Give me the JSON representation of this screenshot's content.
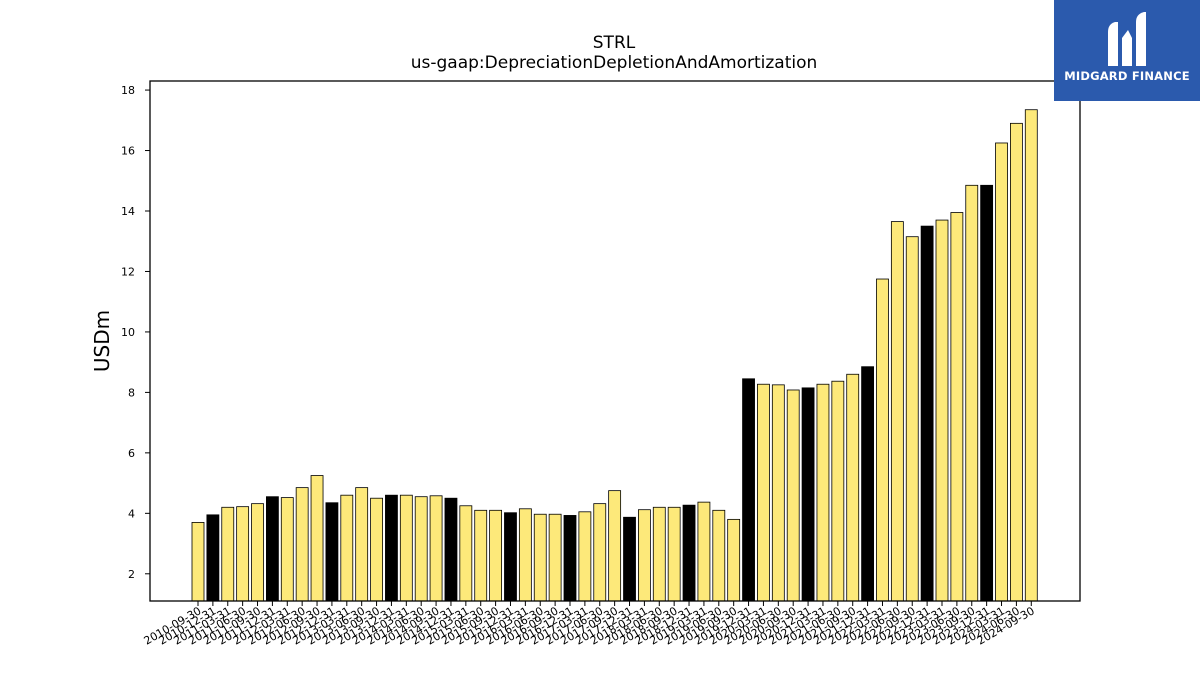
{
  "logo": {
    "text": "MIDGARD FINANCE"
  },
  "chart_data": {
    "type": "bar",
    "title": "STRL",
    "subtitle": "us-gaap:DepreciationDepletionAndAmortization",
    "xlabel": "",
    "ylabel": "USDm",
    "ylim": [
      1.1,
      18.3
    ],
    "yticks": [
      2,
      4,
      6,
      8,
      10,
      12,
      14,
      16,
      18
    ],
    "grid": false,
    "colors": {
      "quarter": "#fde97a",
      "fiscal_year_end": "#000000",
      "edge": "#000000"
    },
    "categories": [
      "2010-09-30",
      "2010-12-31",
      "2011-03-31",
      "2011-06-30",
      "2011-09-30",
      "2011-12-31",
      "2012-03-31",
      "2012-06-30",
      "2012-09-30",
      "2012-12-31",
      "2013-03-31",
      "2013-06-30",
      "2013-09-30",
      "2013-12-31",
      "2014-03-31",
      "2014-06-30",
      "2014-09-30",
      "2014-12-31",
      "2015-03-31",
      "2015-06-30",
      "2015-09-30",
      "2015-12-31",
      "2016-03-31",
      "2016-06-30",
      "2016-09-30",
      "2016-12-31",
      "2017-03-31",
      "2017-06-30",
      "2017-09-30",
      "2017-12-31",
      "2018-03-31",
      "2018-06-30",
      "2018-09-30",
      "2018-12-31",
      "2019-03-31",
      "2019-06-30",
      "2019-09-30",
      "2019-12-31",
      "2020-03-31",
      "2020-06-30",
      "2020-09-30",
      "2020-12-31",
      "2021-03-31",
      "2021-06-30",
      "2021-09-30",
      "2021-12-31",
      "2022-03-31",
      "2022-06-30",
      "2022-09-30",
      "2022-12-31",
      "2023-03-31",
      "2023-06-30",
      "2023-09-30",
      "2023-12-31",
      "2024-03-31",
      "2024-06-30",
      "2024-09-30"
    ],
    "values": [
      3.7,
      3.95,
      4.2,
      4.22,
      4.32,
      4.55,
      4.52,
      4.85,
      5.25,
      4.35,
      4.6,
      4.85,
      4.5,
      4.6,
      4.6,
      4.55,
      4.58,
      4.5,
      4.25,
      4.1,
      4.1,
      4.02,
      4.15,
      3.97,
      3.97,
      3.93,
      4.05,
      4.32,
      4.75,
      3.87,
      4.12,
      4.2,
      4.2,
      4.27,
      4.37,
      4.1,
      3.8,
      8.45,
      8.27,
      8.25,
      8.08,
      8.15,
      8.27,
      8.37,
      8.6,
      8.85,
      11.75,
      13.65,
      13.15,
      13.5,
      13.7,
      13.95,
      14.85,
      14.85,
      16.25,
      16.9,
      17.35
    ],
    "highlight": [
      false,
      true,
      false,
      false,
      false,
      true,
      false,
      false,
      false,
      true,
      false,
      false,
      false,
      true,
      false,
      false,
      false,
      true,
      false,
      false,
      false,
      true,
      false,
      false,
      false,
      true,
      false,
      false,
      false,
      true,
      false,
      false,
      false,
      true,
      false,
      false,
      false,
      true,
      false,
      false,
      false,
      true,
      false,
      false,
      false,
      true,
      false,
      false,
      false,
      true,
      false,
      false,
      false,
      true,
      false,
      false,
      false
    ]
  }
}
